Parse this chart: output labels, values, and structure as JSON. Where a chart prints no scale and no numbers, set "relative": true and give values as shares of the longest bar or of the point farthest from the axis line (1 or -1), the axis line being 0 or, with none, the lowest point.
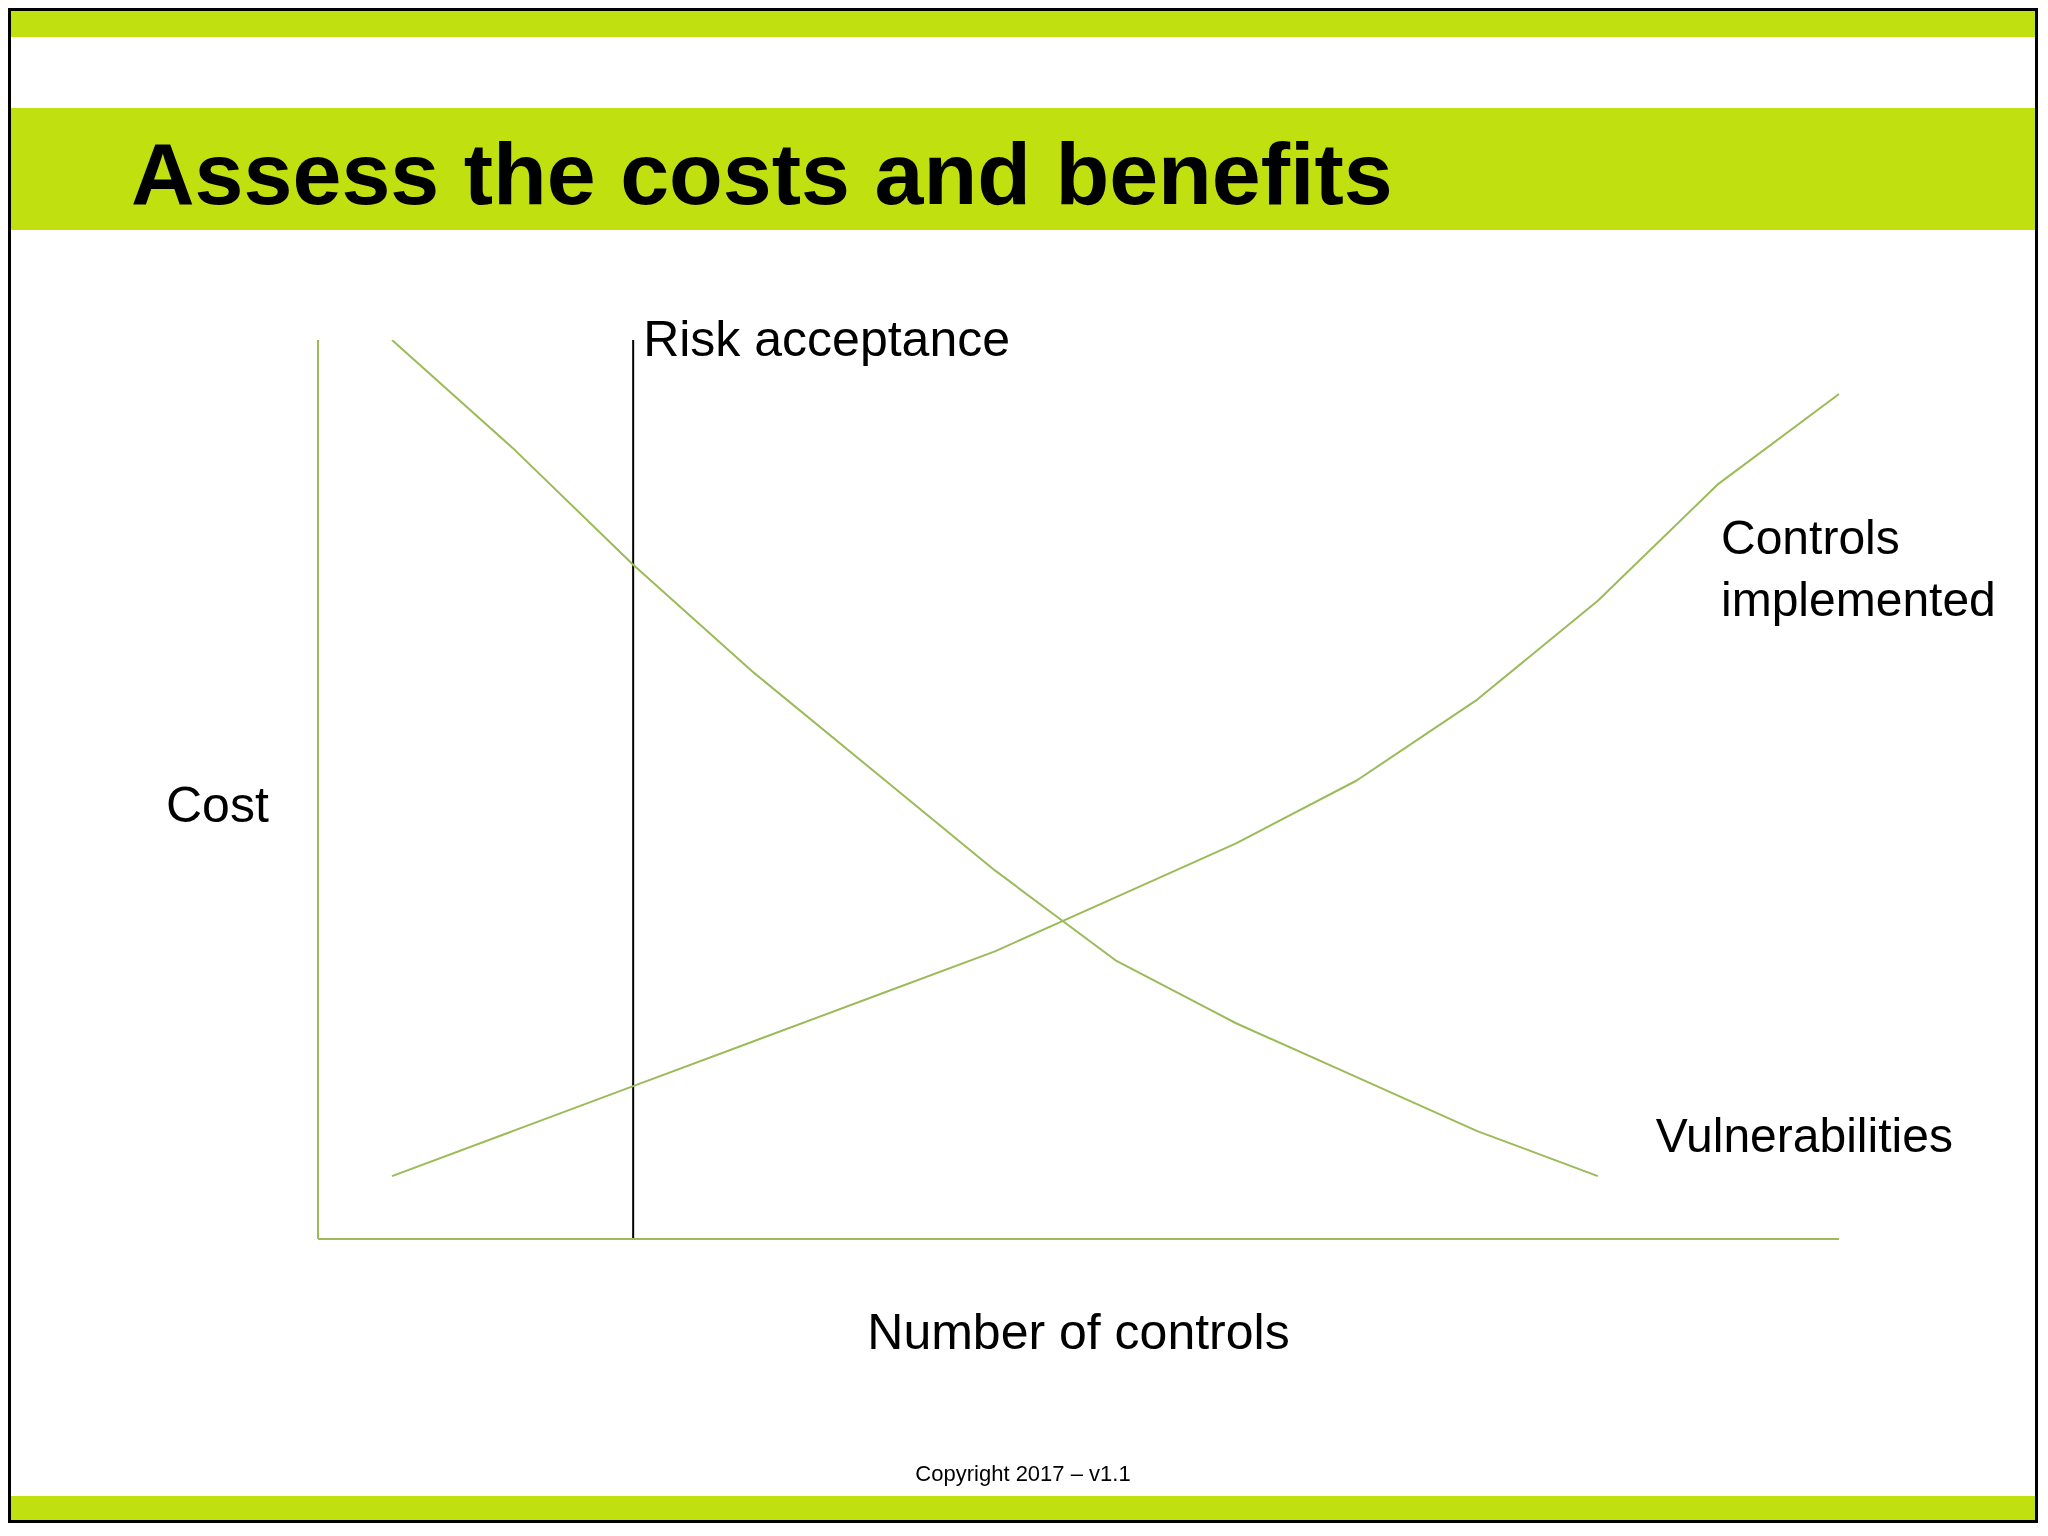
{
  "chart_data": {
    "type": "line",
    "title": "Assess the costs and benefits",
    "xlabel": "Number of controls",
    "ylabel": "Cost",
    "relative": true,
    "grid": false,
    "legend": false,
    "marker": "none",
    "line_style": "solid",
    "categories": [
      null,
      null,
      null,
      null,
      null,
      null,
      null,
      null,
      null,
      null,
      null,
      null,
      null
    ],
    "series": [
      {
        "name": "Vulnerabilities",
        "color": "#9bbb59",
        "values": [
          1.0,
          0.88,
          0.75,
          0.63,
          0.52,
          0.41,
          0.31,
          0.24,
          0.18,
          0.12,
          0.07,
          null,
          null
        ]
      },
      {
        "name": "Controls implemented",
        "color": "#9bbb59",
        "values": [
          0.07,
          0.12,
          0.17,
          0.22,
          0.27,
          0.32,
          0.38,
          0.44,
          0.51,
          0.6,
          0.71,
          0.84,
          0.94
        ]
      }
    ],
    "annotations": [
      "Risk acceptance",
      "Copyright 2017 – v1.1"
    ]
  }
}
